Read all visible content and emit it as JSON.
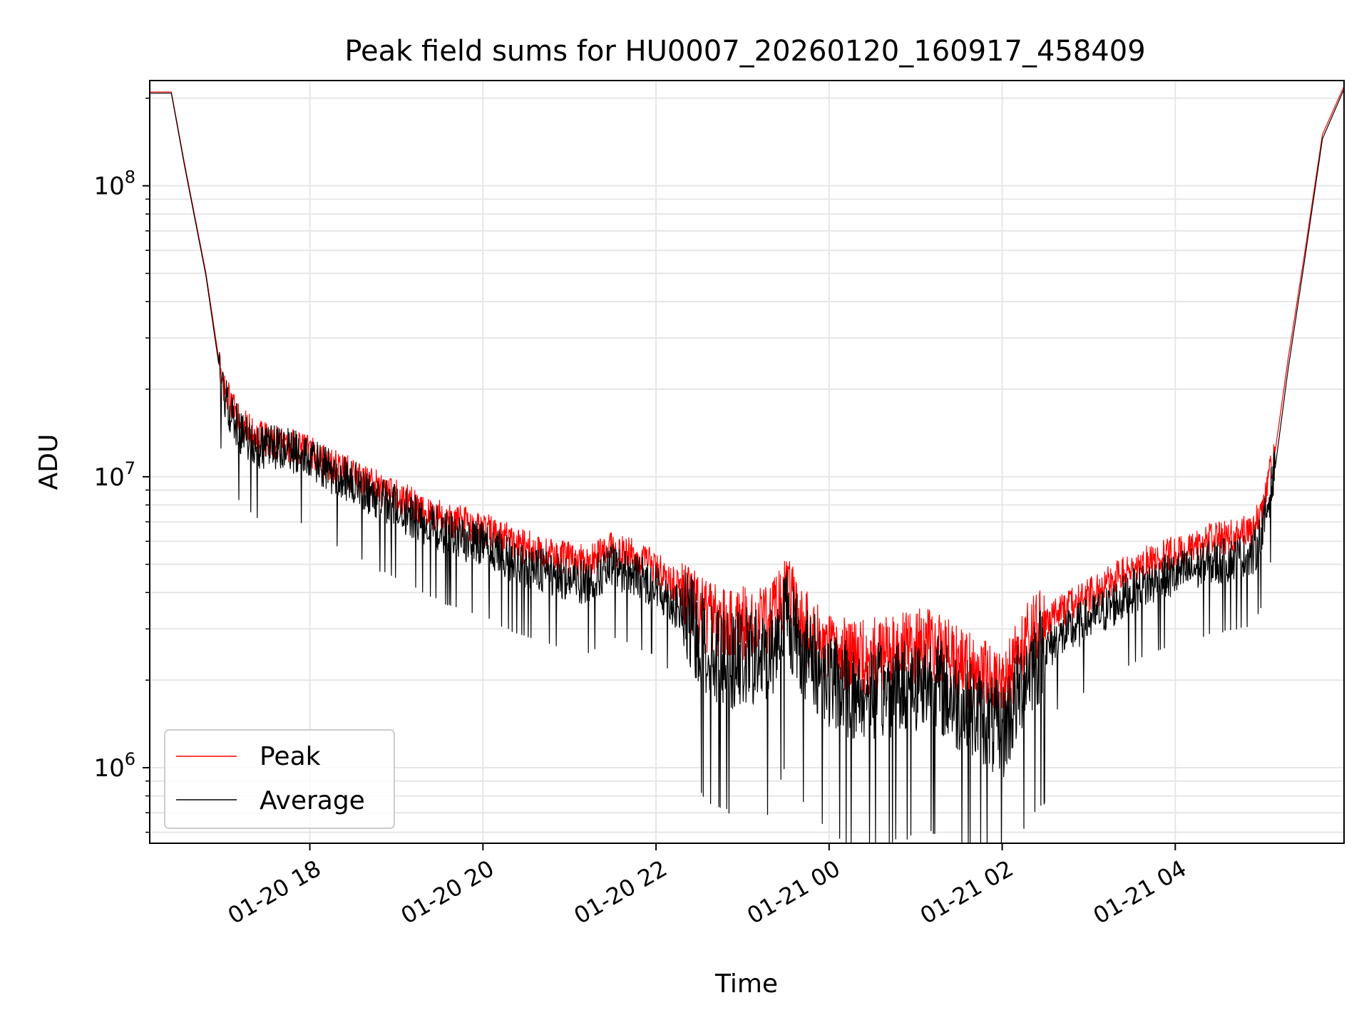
{
  "chart_data": {
    "type": "line",
    "title": "Peak field sums for HU0007_20260120_160917_458409",
    "xlabel": "Time",
    "ylabel": "ADU",
    "yscale": "log",
    "ylim": [
      550000,
      230000000
    ],
    "xlim_hours": [
      16.15,
      5.95
    ],
    "x_ticks": [
      "01-20 18",
      "01-20 20",
      "01-20 22",
      "01-21 00",
      "01-21 02",
      "01-21 04"
    ],
    "y_ticks": [
      {
        "base": "10",
        "exp": "6",
        "value": 1000000
      },
      {
        "base": "10",
        "exp": "7",
        "value": 10000000
      },
      {
        "base": "10",
        "exp": "8",
        "value": 100000000
      }
    ],
    "grid": true,
    "legend": {
      "position": "lower-left",
      "entries": [
        {
          "label": "Peak",
          "color": "#ff0000"
        },
        {
          "label": "Average",
          "color": "#000000"
        }
      ]
    },
    "series": [
      {
        "name": "Peak",
        "color": "#ff0000",
        "x_hours": [
          16.15,
          16.4,
          16.55,
          16.8,
          17.0,
          17.2,
          17.4,
          17.6,
          17.9,
          18.2,
          18.5,
          18.8,
          19.0,
          19.3,
          19.6,
          20.0,
          20.4,
          20.8,
          21.2,
          21.5,
          21.8,
          22.0,
          22.3,
          22.6,
          22.9,
          23.1,
          23.3,
          23.5,
          23.7,
          24.0,
          24.3,
          24.6,
          24.9,
          25.2,
          25.5,
          25.8,
          26.0,
          26.3,
          26.6,
          26.9,
          27.2,
          27.5,
          27.8,
          28.1,
          28.4,
          28.7,
          28.9,
          29.0,
          29.15,
          29.3,
          29.5,
          29.7,
          29.95
        ],
        "values": [
          210000000,
          210000000,
          120000000,
          50000000,
          20000000,
          15000000,
          13500000,
          13000000,
          12500000,
          11000000,
          10000000,
          9000000,
          8500000,
          7600000,
          7000000,
          6600000,
          5800000,
          5300000,
          5000000,
          5600000,
          5200000,
          4800000,
          4000000,
          3200000,
          3000000,
          3100000,
          3000000,
          4000000,
          3000000,
          2500000,
          2300000,
          2400000,
          2500000,
          2600000,
          2200000,
          2000000,
          1800000,
          2800000,
          3300000,
          3700000,
          4200000,
          4800000,
          5200000,
          5500000,
          6000000,
          6200000,
          6500000,
          7500000,
          12000000,
          25000000,
          60000000,
          150000000,
          220000000
        ]
      },
      {
        "name": "Average",
        "color": "#000000",
        "x_hours": [
          16.15,
          16.4,
          16.55,
          16.8,
          17.0,
          17.2,
          17.4,
          17.6,
          17.9,
          18.2,
          18.5,
          18.8,
          19.0,
          19.3,
          19.6,
          20.0,
          20.4,
          20.8,
          21.2,
          21.5,
          21.8,
          22.0,
          22.3,
          22.6,
          22.9,
          23.1,
          23.3,
          23.5,
          23.7,
          24.0,
          24.3,
          24.6,
          24.9,
          25.2,
          25.5,
          25.8,
          26.0,
          26.3,
          26.6,
          26.9,
          27.2,
          27.5,
          27.8,
          28.1,
          28.4,
          28.7,
          28.9,
          29.0,
          29.15,
          29.3,
          29.5,
          29.7,
          29.95
        ],
        "values": [
          208000000,
          208000000,
          118000000,
          49000000,
          19000000,
          14000000,
          12500000,
          12500000,
          12000000,
          10500000,
          9500000,
          8300000,
          7800000,
          7000000,
          6300000,
          5800000,
          5000000,
          4600000,
          4300000,
          4900000,
          4500000,
          4200000,
          3400000,
          2500000,
          2300000,
          2400000,
          2300000,
          3400000,
          2500000,
          2000000,
          1750000,
          1800000,
          1900000,
          2000000,
          1650000,
          1450000,
          1300000,
          2200000,
          2700000,
          3100000,
          3500000,
          4000000,
          4400000,
          4700000,
          5000000,
          5200000,
          5400000,
          6300000,
          10500000,
          23000000,
          57000000,
          145000000,
          215000000
        ]
      }
    ]
  }
}
